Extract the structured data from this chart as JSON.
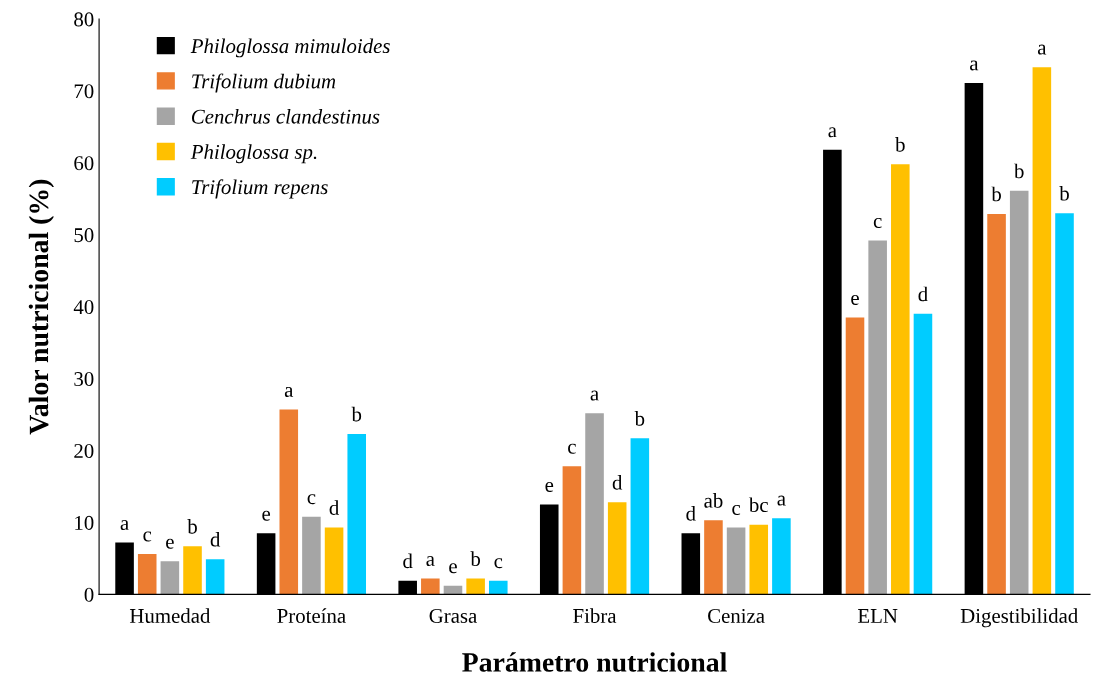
{
  "chart_data": {
    "type": "bar",
    "xlabel": "Parámetro nutricional",
    "ylabel": "Valor nutricional (%)",
    "categories": [
      "Humedad",
      "Proteína",
      "Grasa",
      "Fibra",
      "Ceniza",
      "ELN",
      "Digestibilidad"
    ],
    "ylim": [
      0,
      80
    ],
    "yticks": [
      0,
      10,
      20,
      30,
      40,
      50,
      60,
      70,
      80
    ],
    "grid": false,
    "legend": "top left",
    "series": [
      {
        "name": "Philoglossa mimuloides",
        "color": "#000000",
        "values": [
          7.2,
          8.5,
          1.9,
          12.5,
          8.5,
          61.8,
          71.1
        ],
        "value_labels": [
          "a",
          "e",
          "d",
          "e",
          "d",
          "a",
          "a"
        ]
      },
      {
        "name": "Trifolium dubium",
        "color": "#ed7d31",
        "values": [
          5.6,
          25.7,
          2.2,
          17.8,
          10.3,
          38.5,
          52.9
        ],
        "value_labels": [
          "c",
          "a",
          "a",
          "c",
          "ab",
          "e",
          "b"
        ]
      },
      {
        "name": "Cenchrus clandestinus",
        "color": "#a5a5a5",
        "values": [
          4.6,
          10.8,
          1.2,
          25.2,
          9.3,
          49.2,
          56.1
        ],
        "value_labels": [
          "e",
          "c",
          "e",
          "a",
          "c",
          "c",
          "b"
        ]
      },
      {
        "name": "Philoglossa sp.",
        "color": "#ffc000",
        "values": [
          6.7,
          9.3,
          2.2,
          12.8,
          9.7,
          59.8,
          73.3
        ],
        "value_labels": [
          "b",
          "d",
          "b",
          "d",
          "bc",
          "b",
          "a"
        ]
      },
      {
        "name": "Trifolium repens",
        "color": "#00ccff",
        "values": [
          4.9,
          22.3,
          1.9,
          21.7,
          10.6,
          39.0,
          53.0
        ],
        "value_labels": [
          "d",
          "b",
          "c",
          "b",
          "a",
          "d",
          "b"
        ]
      }
    ]
  }
}
